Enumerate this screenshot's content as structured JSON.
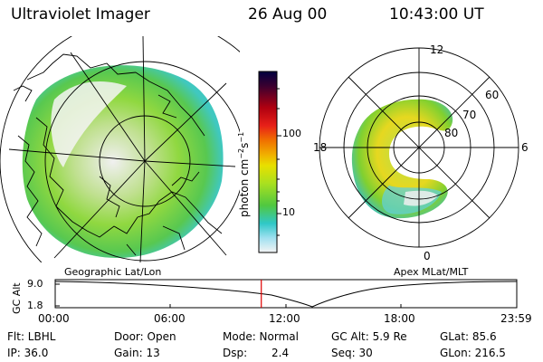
{
  "header": {
    "instrument": "Ultraviolet Imager",
    "date": "26 Aug 00",
    "time": "10:43:00 UT"
  },
  "colorbar": {
    "unit_label": "photon cm",
    "unit_exp1": "−2",
    "unit_s": "s",
    "unit_exp2": "−1",
    "ticks": [
      "100",
      "10"
    ],
    "colors": [
      "#000040",
      "#2a0030",
      "#6a0018",
      "#b80010",
      "#e8201a",
      "#f07000",
      "#f0a000",
      "#e8d800",
      "#bde000",
      "#80d820",
      "#50c840",
      "#30c8a0",
      "#30c8d8",
      "#a0e0f0",
      "#f0f0f0"
    ]
  },
  "polar_plot": {
    "mlt_labels": [
      "12",
      "18",
      "6",
      "0"
    ],
    "lat_labels": [
      "60",
      "70",
      "80"
    ]
  },
  "map_labels": {
    "left": "Geographic Lat/Lon",
    "right": "Apex MLat/MLT"
  },
  "altitude_strip": {
    "axis_label": "GC Alt",
    "ticks": [
      "9.0",
      "1.8"
    ],
    "time_ticks": [
      "00:00",
      "06:00",
      "12:00",
      "18:00",
      "23:59"
    ],
    "current_time_fraction": 0.4465
  },
  "footer": {
    "row1": [
      "Flt: LBHL",
      "Door: Open",
      "Mode: Normal",
      "GC Alt: 5.9 Re",
      "GLat: 85.6"
    ],
    "row2": [
      "IP: 36.0",
      "Gain: 13",
      "Dsp:",
      "2.4",
      "Seq: 30",
      "GLon: 216.5"
    ]
  }
}
